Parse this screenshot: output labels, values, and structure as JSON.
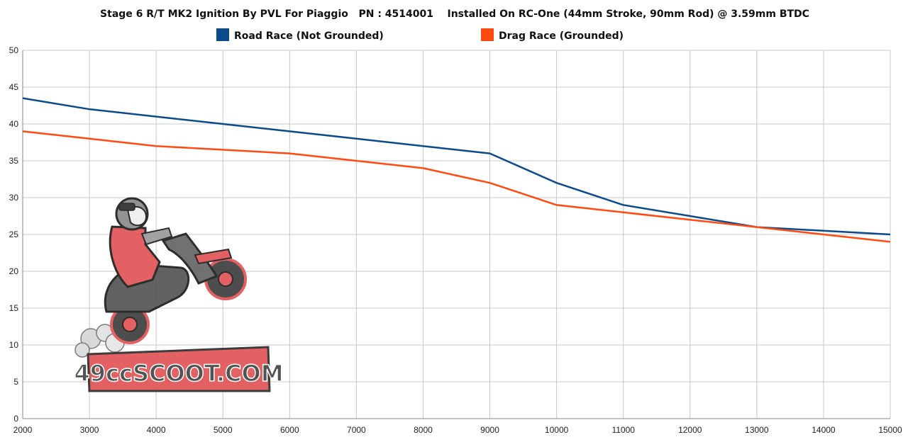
{
  "chart_data": {
    "type": "line",
    "title": "Stage 6 R/T MK2 Ignition By PVL For Piaggio   PN : 4514001    Installed On RC-One (44mm Stroke, 90mm Rod) @ 3.59mm BTDC",
    "xlabel": "",
    "ylabel": "",
    "x": [
      2000,
      3000,
      4000,
      5000,
      6000,
      7000,
      8000,
      9000,
      10000,
      11000,
      12000,
      13000,
      14000,
      15000
    ],
    "xlim": [
      2000,
      15000
    ],
    "ylim": [
      0,
      50
    ],
    "y_ticks": [
      0,
      5,
      10,
      15,
      20,
      25,
      30,
      35,
      40,
      45,
      50
    ],
    "grid": true,
    "legend_position": "top",
    "series": [
      {
        "name": "Road Race (Not Grounded)",
        "color": "#0b4a8b",
        "values": [
          43.5,
          42,
          41,
          40,
          39,
          38,
          37,
          36,
          32,
          29,
          27.5,
          26,
          25.5,
          25
        ]
      },
      {
        "name": "Drag Race (Grounded)",
        "color": "#ff4a12",
        "values": [
          39,
          38,
          37,
          36.5,
          36,
          35,
          34,
          32,
          29,
          28,
          27,
          26,
          25,
          24
        ]
      }
    ],
    "watermark": {
      "text": "49ccSCOOT.COM",
      "icon": "scooter-rider-logo-icon"
    }
  }
}
